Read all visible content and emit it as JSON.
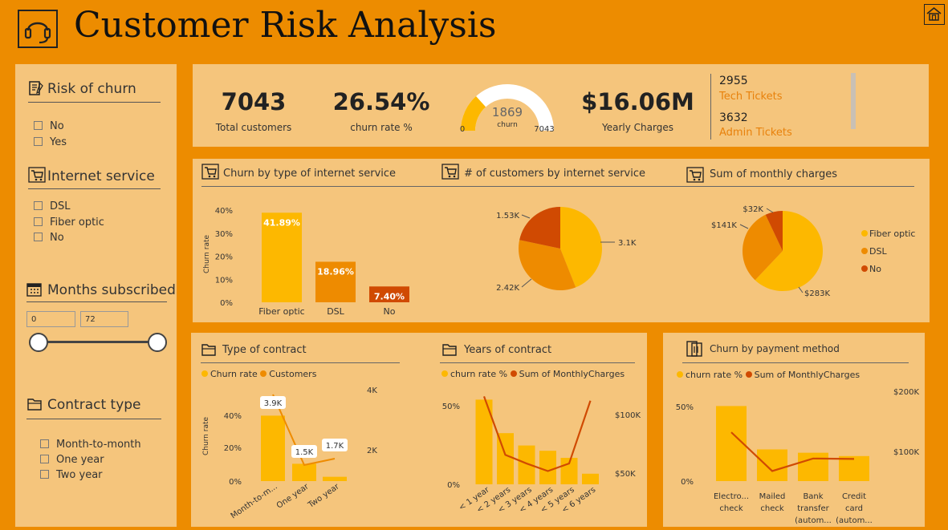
{
  "header": {
    "title": "Customer Risk Analysis",
    "logo_icon": "headset-icon",
    "home_icon": "home-icon"
  },
  "colors": {
    "background": "#ED8C00",
    "panel": "#F5C57C",
    "yellow": "#FDB800",
    "orange": "#EE8B00",
    "red": "#D04A02",
    "link": "#E8810B"
  },
  "slicers": {
    "risk": {
      "title": "Risk of churn",
      "options": [
        "No",
        "Yes"
      ]
    },
    "internet": {
      "title": "Internet service",
      "options": [
        "DSL",
        "Fiber optic",
        "No"
      ]
    },
    "months": {
      "title": "Months subscribed",
      "min": "0",
      "max": "72"
    },
    "contract": {
      "title": "Contract type",
      "options": [
        "Month-to-month",
        "One year",
        "Two year"
      ]
    }
  },
  "kpis": {
    "customers": {
      "value": "7043",
      "label": "Total customers"
    },
    "churn_rate": {
      "value": "26.54%",
      "label": "churn rate %"
    },
    "gauge": {
      "value": "1869",
      "label": "churn",
      "min": "0",
      "max": "7043",
      "fraction": 0.2654
    },
    "charges": {
      "value": "$16.06M",
      "label": "Yearly Charges"
    },
    "tech": {
      "value": "2955",
      "label": "Tech Tickets"
    },
    "admin": {
      "value": "3632",
      "label": "Admin Tickets"
    }
  },
  "chart_data": [
    {
      "id": "churn_internet",
      "type": "bar",
      "title": "Churn by type of internet service",
      "ylabel": "Churn rate",
      "yticks": [
        "40%",
        "30%",
        "20%",
        "10%",
        "0%"
      ],
      "ylim": [
        0,
        0.45
      ],
      "categories": [
        "Fiber optic",
        "DSL",
        "No"
      ],
      "values": [
        0.4189,
        0.1896,
        0.074
      ],
      "labels": [
        "41.89%",
        "18.96%",
        "7.40%"
      ],
      "colors": [
        "#FDB800",
        "#EE8B00",
        "#D04A02"
      ]
    },
    {
      "id": "customers_internet",
      "type": "pie",
      "title": "# of customers by internet service",
      "categories": [
        "Fiber optic",
        "DSL",
        "No"
      ],
      "values": [
        3100,
        2420,
        1530
      ],
      "labels": [
        "3.1K",
        "2.42K",
        "1.53K"
      ],
      "colors": [
        "#FDB800",
        "#EE8B00",
        "#D04A02"
      ]
    },
    {
      "id": "monthly_charges",
      "type": "pie",
      "title": "Sum of monthly charges",
      "categories": [
        "Fiber optic",
        "DSL",
        "No"
      ],
      "values": [
        283,
        141,
        32
      ],
      "labels": [
        "$283K",
        "$141K",
        "$32K"
      ],
      "colors": [
        "#FDB800",
        "#EE8B00",
        "#D04A02"
      ],
      "legend": [
        "Fiber optic",
        "DSL",
        "No"
      ]
    },
    {
      "id": "contract_type",
      "type": "bar",
      "title": "Type of contract",
      "legend": [
        "Churn rate",
        "Customers"
      ],
      "ylabel": "Churn rate",
      "yticks": [
        "40%",
        "20%",
        "0%"
      ],
      "y2ticks": [
        "4K",
        "2K"
      ],
      "categories": [
        "Month-to-m...",
        "One year",
        "Two year"
      ],
      "churn": [
        0.427,
        0.113,
        0.028
      ],
      "customers": [
        3875,
        1473,
        1695
      ],
      "labels": [
        "3.9K",
        "1.5K",
        "1.7K"
      ]
    },
    {
      "id": "years_contract",
      "type": "bar",
      "title": "Years of contract",
      "legend": [
        "churn rate %",
        "Sum of MonthlyCharges"
      ],
      "yticks": [
        "50%",
        "0%"
      ],
      "y2ticks": [
        "$100K",
        "$50K"
      ],
      "categories": [
        "< 1 year",
        "< 2 years",
        "< 3 years",
        "< 4 years",
        "< 5 years",
        "< 6 years"
      ],
      "churn": [
        0.48,
        0.29,
        0.22,
        0.19,
        0.15,
        0.06
      ],
      "charges": [
        119,
        65,
        57,
        50,
        57,
        115
      ]
    },
    {
      "id": "payment_method",
      "type": "bar",
      "title": "Churn by payment method",
      "legend": [
        "churn rate %",
        "Sum of MonthlyCharges"
      ],
      "yticks": [
        "50%",
        "0%"
      ],
      "y2ticks": [
        "$200K",
        "$100K"
      ],
      "categories": [
        "Electro... check",
        "Mailed check",
        "Bank transfer (autom...",
        "Credit card (autom..."
      ],
      "churn": [
        0.45,
        0.19,
        0.17,
        0.15
      ],
      "charges": [
        159,
        66,
        96,
        95
      ]
    }
  ]
}
